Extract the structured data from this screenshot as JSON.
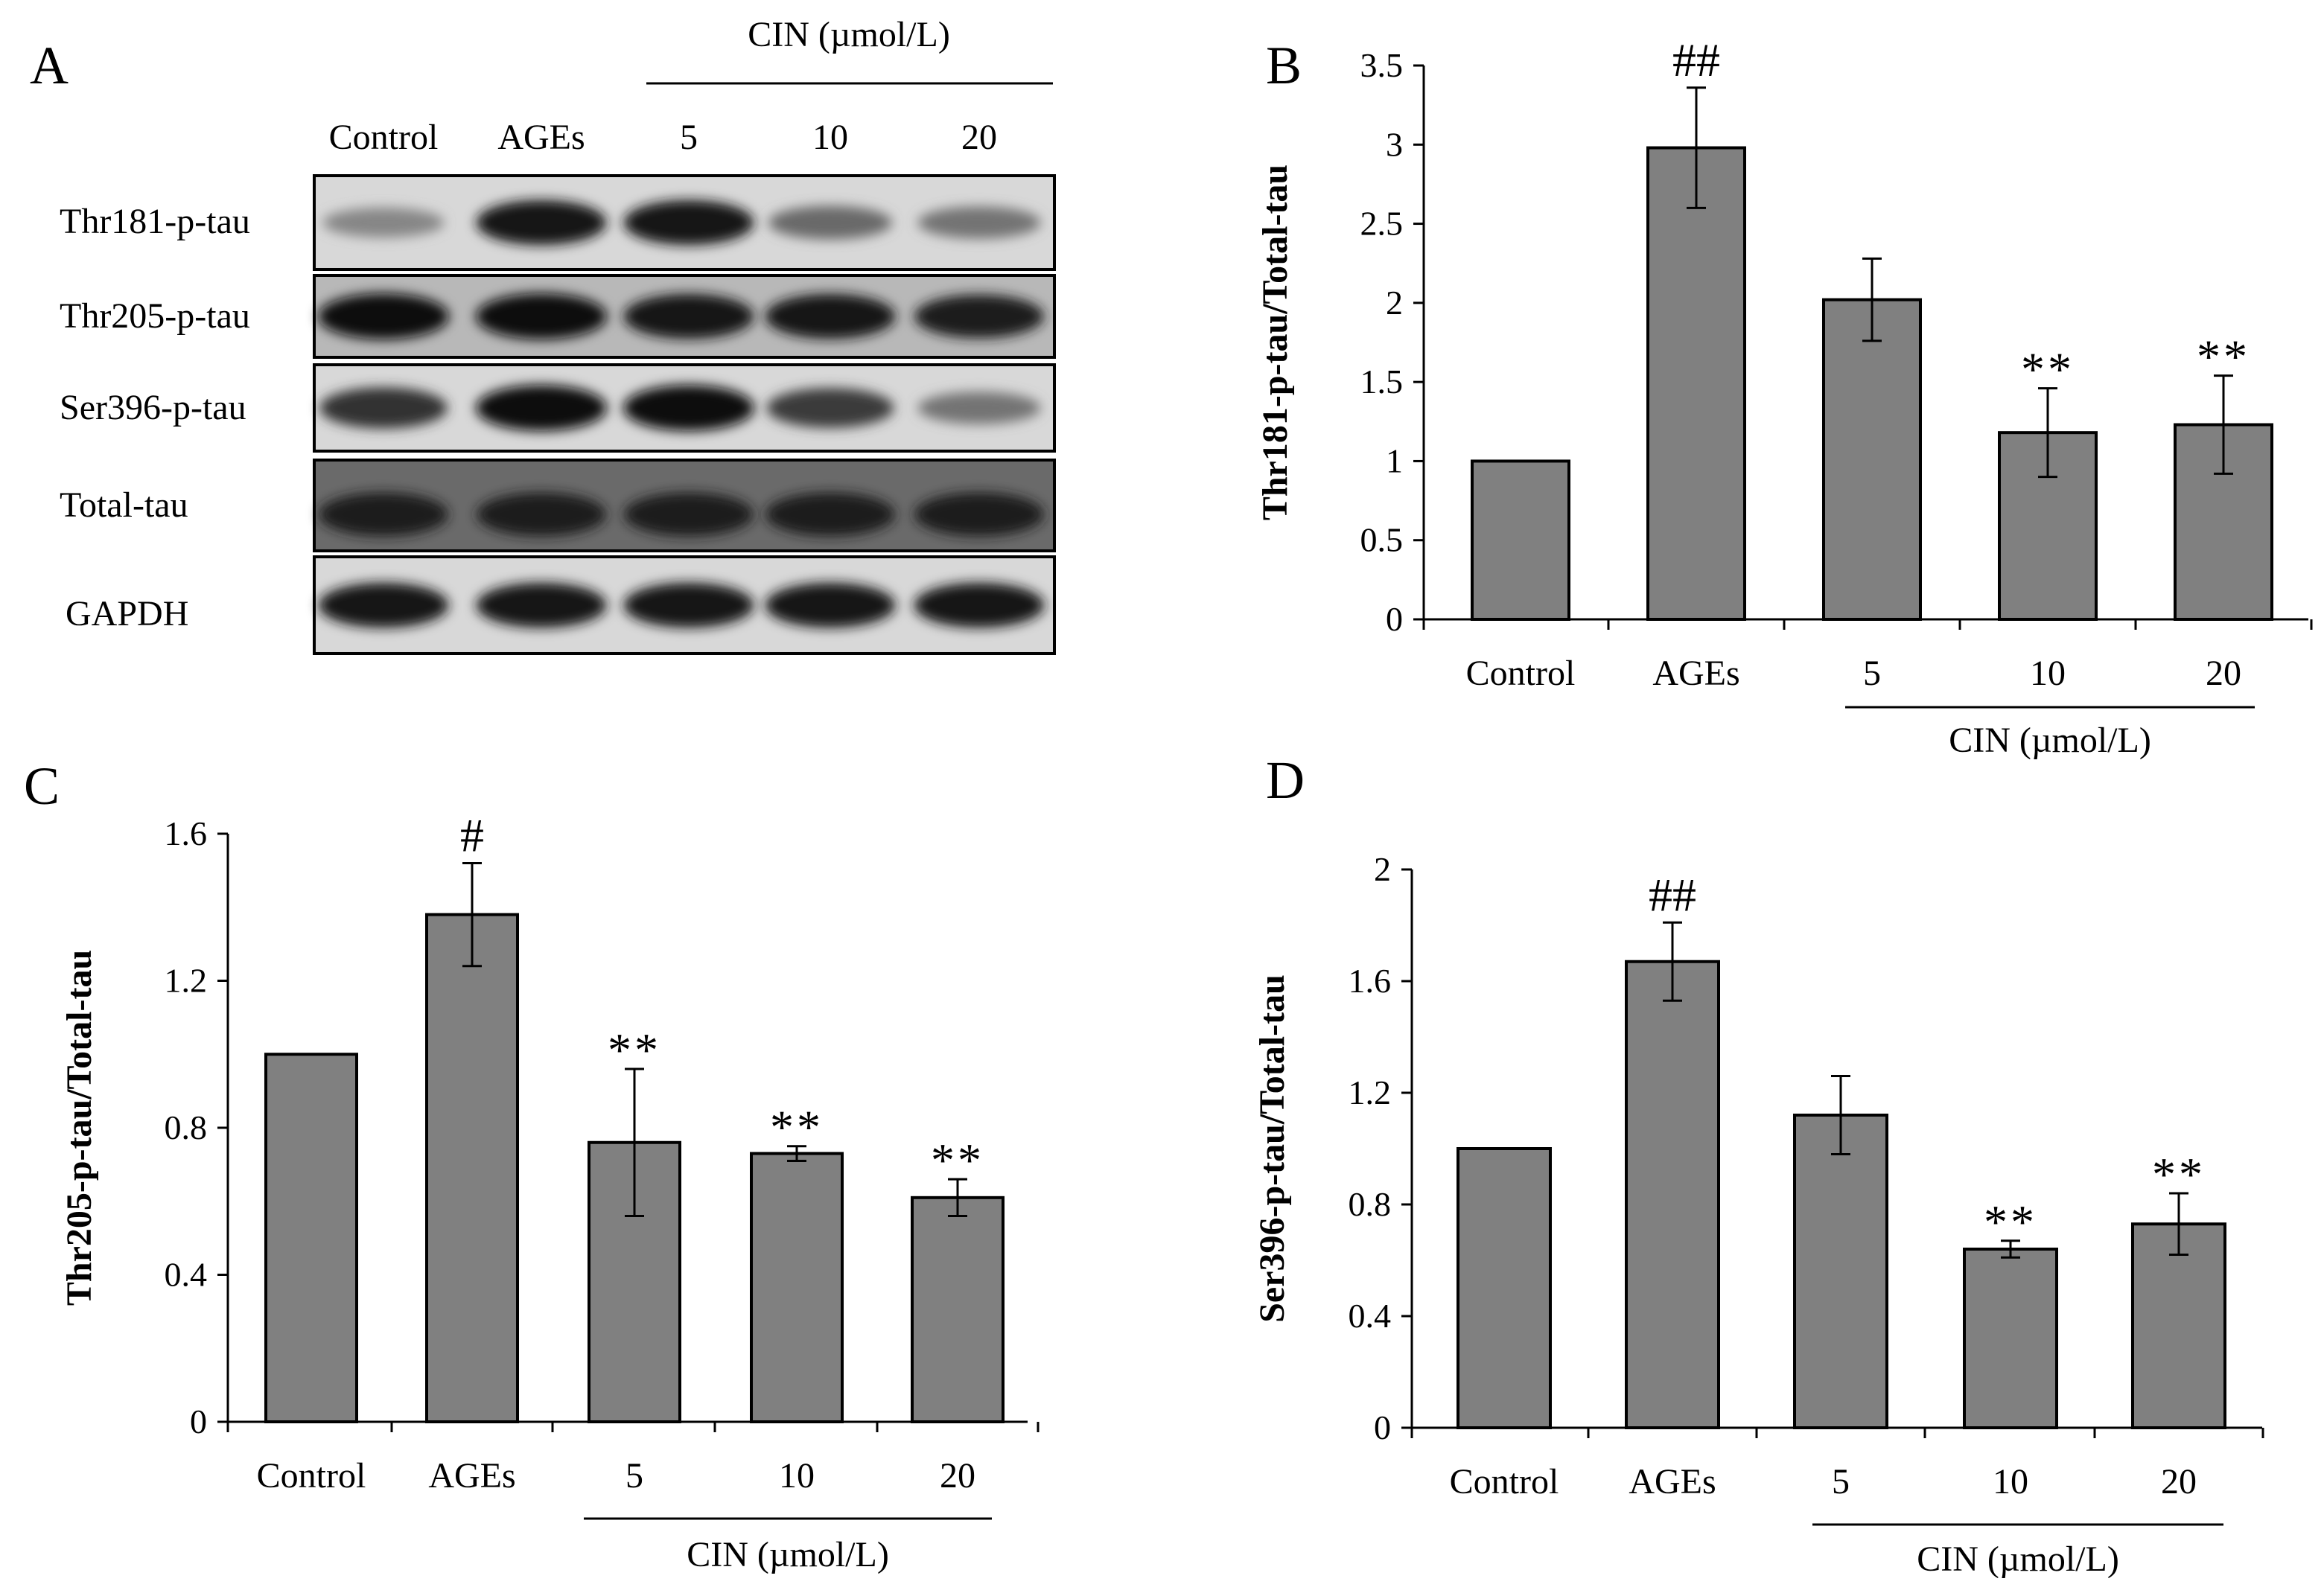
{
  "panel_a": {
    "letter": "A",
    "treatment_label": "CIN (µmol/L)",
    "lanes": [
      "Control",
      "AGEs",
      "5",
      "10",
      "20"
    ],
    "rows": [
      {
        "label": "Thr181-p-tau",
        "band_intensity": [
          0.35,
          0.95,
          0.95,
          0.5,
          0.45
        ]
      },
      {
        "label": "Thr205-p-tau",
        "band_intensity": [
          1.0,
          1.0,
          0.95,
          0.95,
          0.9
        ]
      },
      {
        "label": "Ser396-p-tau",
        "band_intensity": [
          0.8,
          1.0,
          1.0,
          0.75,
          0.45
        ]
      },
      {
        "label": "Total-tau",
        "band_intensity": [
          0.9,
          0.9,
          0.9,
          0.9,
          0.9
        ]
      },
      {
        "label": "GAPDH",
        "band_intensity": [
          0.95,
          0.95,
          0.95,
          0.95,
          0.95
        ]
      }
    ]
  },
  "chart_data": [
    {
      "panel": "B",
      "type": "bar",
      "ylabel": "Thr181-p-tau/Total-tau",
      "categories": [
        "Control",
        "AGEs",
        "5",
        "10",
        "20"
      ],
      "group_label": "CIN (µmol/L)",
      "values": [
        1.0,
        2.98,
        2.02,
        1.18,
        1.23
      ],
      "errors": [
        0,
        0.38,
        0.26,
        0.28,
        0.31
      ],
      "annotations": [
        "",
        "##",
        "",
        "**",
        "**"
      ],
      "ylim": [
        0,
        3.5
      ],
      "yticks": [
        0,
        0.5,
        1,
        1.5,
        2,
        2.5,
        3,
        3.5
      ],
      "ytick_labels": [
        "0",
        "0.5",
        "1",
        "1.5",
        "2",
        "2.5",
        "3",
        "3.5"
      ],
      "bar_color": "#808080"
    },
    {
      "panel": "C",
      "type": "bar",
      "ylabel": "Thr205-p-tau/Total-tau",
      "categories": [
        "Control",
        "AGEs",
        "5",
        "10",
        "20"
      ],
      "group_label": "CIN (µmol/L)",
      "values": [
        1.0,
        1.38,
        0.76,
        0.73,
        0.61
      ],
      "errors": [
        0,
        0.14,
        0.2,
        0.02,
        0.05
      ],
      "annotations": [
        "",
        "#",
        "**",
        "**",
        "**"
      ],
      "ylim": [
        0,
        1.6
      ],
      "yticks": [
        0,
        0.4,
        0.8,
        1.2,
        1.6
      ],
      "ytick_labels": [
        "0",
        "0.4",
        "0.8",
        "1.2",
        "1.6"
      ],
      "bar_color": "#808080"
    },
    {
      "panel": "D",
      "type": "bar",
      "ylabel": "Ser396-p-tau/Total-tau",
      "categories": [
        "Control",
        "AGEs",
        "5",
        "10",
        "20"
      ],
      "group_label": "CIN (µmol/L)",
      "values": [
        1.0,
        1.67,
        1.12,
        0.64,
        0.73
      ],
      "errors": [
        0,
        0.14,
        0.14,
        0.03,
        0.11
      ],
      "annotations": [
        "",
        "##",
        "",
        "**",
        "**"
      ],
      "ylim": [
        0,
        2.0
      ],
      "yticks": [
        0,
        0.4,
        0.8,
        1.2,
        1.6,
        2.0
      ],
      "ytick_labels": [
        "0",
        "0.4",
        "0.8",
        "1.2",
        "1.6",
        "2"
      ],
      "bar_color": "#808080"
    }
  ]
}
